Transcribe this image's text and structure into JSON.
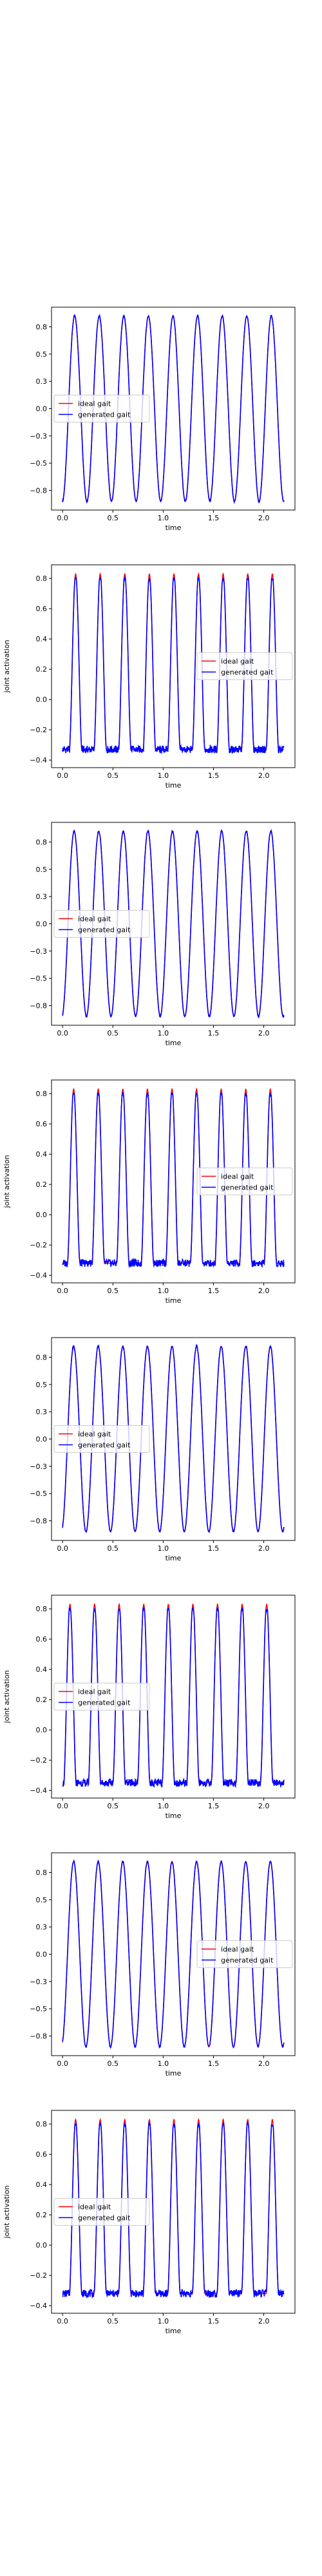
{
  "chart_data": [
    {
      "type": "line",
      "kind": "sine",
      "title": "",
      "xlabel": "time",
      "ylabel": "",
      "xlim": [
        -0.11,
        2.31
      ],
      "ylim": [
        -0.93,
        0.93
      ],
      "xticks": [
        0.0,
        0.5,
        1.0,
        1.5,
        2.0
      ],
      "yticks": [
        -0.75,
        -0.5,
        -0.25,
        0.0,
        0.25,
        0.5,
        0.75
      ],
      "legend": {
        "placement": "center-left",
        "entries": [
          "ideal gait",
          "generated gait"
        ]
      },
      "grid": false,
      "x_range": [
        0.0,
        2.2
      ],
      "cycles": 9.0,
      "start_phase_cycles": 0.76,
      "amplitude": 0.85,
      "series": [
        {
          "name": "ideal gait",
          "color": "#ff0000"
        },
        {
          "name": "generated gait",
          "color": "#0000ff"
        }
      ]
    },
    {
      "type": "line",
      "kind": "pulse",
      "title": "",
      "xlabel": "time",
      "ylabel": "joint activation",
      "xlim": [
        -0.11,
        2.31
      ],
      "ylim": [
        -0.45,
        0.89
      ],
      "xticks": [
        0.0,
        0.5,
        1.0,
        1.5,
        2.0
      ],
      "yticks": [
        -0.4,
        -0.2,
        0.0,
        0.2,
        0.4,
        0.6,
        0.8
      ],
      "legend": {
        "placement": "center-right",
        "entries": [
          "ideal gait",
          "generated gait"
        ]
      },
      "grid": false,
      "x_range": [
        0.0,
        2.2
      ],
      "cycles": 9.0,
      "start_phase_cycles": 0.72,
      "baseline": -0.33,
      "peak": 0.83,
      "series": [
        {
          "name": "ideal gait",
          "color": "#ff0000"
        },
        {
          "name": "generated gait",
          "color": "#0000ff"
        }
      ]
    },
    {
      "type": "line",
      "kind": "sine",
      "title": "",
      "xlabel": "time",
      "ylabel": "",
      "xlim": [
        -0.11,
        2.31
      ],
      "ylim": [
        -0.93,
        0.93
      ],
      "xticks": [
        0.0,
        0.5,
        1.0,
        1.5,
        2.0
      ],
      "yticks": [
        -0.75,
        -0.5,
        -0.25,
        0.0,
        0.25,
        0.5,
        0.75
      ],
      "legend": {
        "placement": "center-left",
        "entries": [
          "ideal gait",
          "generated gait"
        ]
      },
      "grid": false,
      "x_range": [
        0.0,
        2.2
      ],
      "cycles": 9.0,
      "start_phase_cycles": 0.78,
      "amplitude": 0.85,
      "series": [
        {
          "name": "ideal gait",
          "color": "#ff0000"
        },
        {
          "name": "generated gait",
          "color": "#0000ff"
        }
      ]
    },
    {
      "type": "line",
      "kind": "pulse",
      "title": "",
      "xlabel": "time",
      "ylabel": "joint activation",
      "xlim": [
        -0.11,
        2.31
      ],
      "ylim": [
        -0.45,
        0.89
      ],
      "xticks": [
        0.0,
        0.5,
        1.0,
        1.5,
        2.0
      ],
      "yticks": [
        -0.4,
        -0.2,
        0.0,
        0.2,
        0.4,
        0.6,
        0.8
      ],
      "legend": {
        "placement": "center-right",
        "entries": [
          "ideal gait",
          "generated gait"
        ]
      },
      "grid": false,
      "x_range": [
        0.0,
        2.2
      ],
      "cycles": 9.0,
      "start_phase_cycles": 0.8,
      "baseline": -0.32,
      "peak": 0.83,
      "series": [
        {
          "name": "ideal gait",
          "color": "#ff0000"
        },
        {
          "name": "generated gait",
          "color": "#0000ff"
        }
      ]
    },
    {
      "type": "line",
      "kind": "sine",
      "title": "",
      "xlabel": "time",
      "ylabel": "",
      "xlim": [
        -0.11,
        2.31
      ],
      "ylim": [
        -0.93,
        0.93
      ],
      "xticks": [
        0.0,
        0.5,
        1.0,
        1.5,
        2.0
      ],
      "yticks": [
        -0.75,
        -0.5,
        -0.25,
        0.0,
        0.25,
        0.5,
        0.75
      ],
      "legend": {
        "placement": "center-left",
        "entries": [
          "ideal gait",
          "generated gait"
        ]
      },
      "grid": false,
      "x_range": [
        0.0,
        2.2
      ],
      "cycles": 9.0,
      "start_phase_cycles": 0.8,
      "amplitude": 0.85,
      "series": [
        {
          "name": "ideal gait",
          "color": "#ff0000"
        },
        {
          "name": "generated gait",
          "color": "#0000ff"
        }
      ]
    },
    {
      "type": "line",
      "kind": "pulse",
      "title": "",
      "xlabel": "time",
      "ylabel": "joint activation",
      "xlim": [
        -0.11,
        2.31
      ],
      "ylim": [
        -0.45,
        0.89
      ],
      "xticks": [
        0.0,
        0.5,
        1.0,
        1.5,
        2.0
      ],
      "yticks": [
        -0.4,
        -0.2,
        0.0,
        0.2,
        0.4,
        0.6,
        0.8
      ],
      "legend": {
        "placement": "center-left",
        "entries": [
          "ideal gait",
          "generated gait"
        ]
      },
      "grid": false,
      "x_range": [
        0.0,
        2.2
      ],
      "cycles": 9.0,
      "start_phase_cycles": 0.95,
      "baseline": -0.35,
      "peak": 0.83,
      "series": [
        {
          "name": "ideal gait",
          "color": "#ff0000"
        },
        {
          "name": "generated gait",
          "color": "#0000ff"
        }
      ]
    },
    {
      "type": "line",
      "kind": "sine",
      "title": "",
      "xlabel": "time",
      "ylabel": "",
      "xlim": [
        -0.11,
        2.31
      ],
      "ylim": [
        -0.93,
        0.93
      ],
      "xticks": [
        0.0,
        0.5,
        1.0,
        1.5,
        2.0
      ],
      "yticks": [
        -0.75,
        -0.5,
        -0.25,
        0.0,
        0.25,
        0.5,
        0.75
      ],
      "legend": {
        "placement": "center-right",
        "entries": [
          "ideal gait",
          "generated gait"
        ]
      },
      "grid": false,
      "x_range": [
        0.0,
        2.2
      ],
      "cycles": 9.0,
      "start_phase_cycles": 0.8,
      "amplitude": 0.85,
      "series": [
        {
          "name": "ideal gait",
          "color": "#ff0000"
        },
        {
          "name": "generated gait",
          "color": "#0000ff"
        }
      ]
    },
    {
      "type": "line",
      "kind": "pulse",
      "title": "",
      "xlabel": "time",
      "ylabel": "joint activation",
      "xlim": [
        -0.11,
        2.31
      ],
      "ylim": [
        -0.45,
        0.89
      ],
      "xticks": [
        0.0,
        0.5,
        1.0,
        1.5,
        2.0
      ],
      "yticks": [
        -0.4,
        -0.2,
        0.0,
        0.2,
        0.4,
        0.6,
        0.8
      ],
      "legend": {
        "placement": "center-left",
        "entries": [
          "ideal gait",
          "generated gait"
        ]
      },
      "grid": false,
      "x_range": [
        0.0,
        2.2
      ],
      "cycles": 9.0,
      "start_phase_cycles": 0.72,
      "baseline": -0.32,
      "peak": 0.83,
      "series": [
        {
          "name": "ideal gait",
          "color": "#ff0000"
        },
        {
          "name": "generated gait",
          "color": "#0000ff"
        }
      ]
    }
  ]
}
